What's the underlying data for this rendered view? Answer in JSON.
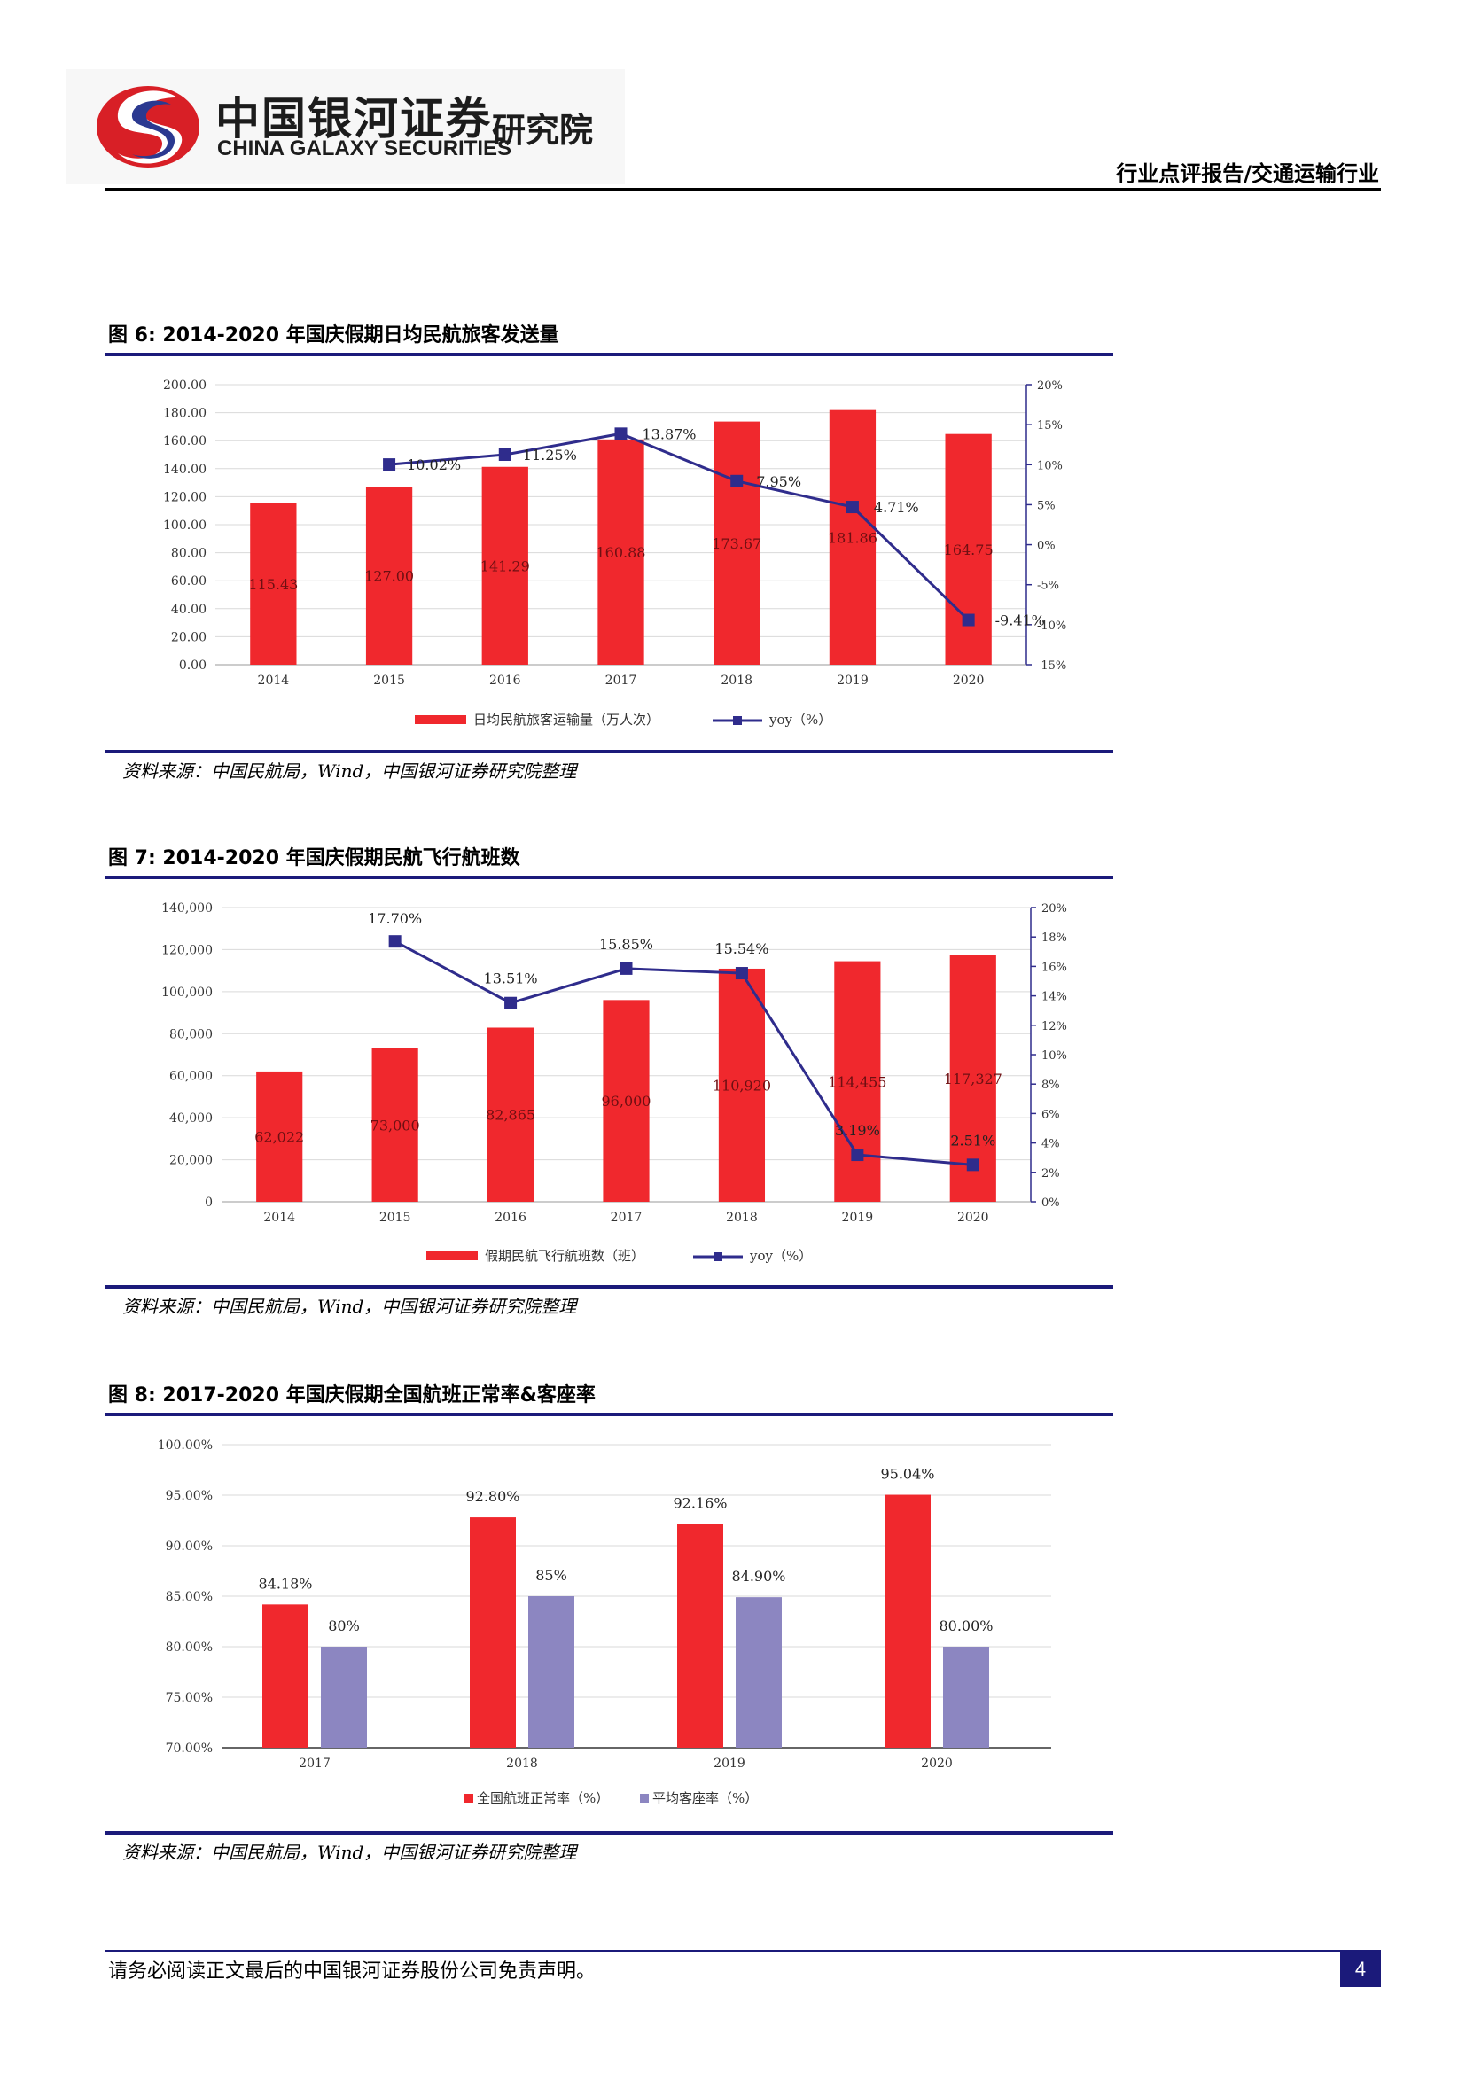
{
  "header": {
    "logo_cn": "中国银河证券",
    "logo_en": "CHINA GALAXY SECURITIES",
    "logo_institute": "研究院",
    "report_type": "行业点评报告/交通运输行业"
  },
  "figures": [
    {
      "title": "图 6: 2014-2020 年国庆假期日均民航旅客发送量",
      "source": "资料来源：中国民航局，Wind，中国银河证券研究院整理"
    },
    {
      "title": "图 7: 2014-2020 年国庆假期民航飞行航班数",
      "source": "资料来源：中国民航局，Wind，中国银河证券研究院整理"
    },
    {
      "title": "图 8: 2017-2020 年国庆假期全国航班正常率&客座率",
      "source": "资料来源：中国民航局，Wind，中国银河证券研究院整理"
    }
  ],
  "chart_data": [
    {
      "type": "bar+line",
      "categories": [
        "2014",
        "2015",
        "2016",
        "2017",
        "2018",
        "2019",
        "2020"
      ],
      "series": [
        {
          "name": "日均民航旅客运输量（万人次）",
          "type": "bar",
          "axis": "left",
          "values": [
            115.43,
            127.0,
            141.29,
            160.88,
            173.67,
            181.86,
            164.75
          ],
          "labels": [
            "115.43",
            "127.00",
            "141.29",
            "160.88",
            "173.67",
            "181.86",
            "164.75"
          ],
          "color": "#f0282d"
        },
        {
          "name": "yoy（%）",
          "type": "line",
          "axis": "right",
          "values": [
            null,
            10.02,
            11.25,
            13.87,
            7.95,
            4.71,
            -9.41
          ],
          "labels": [
            "",
            "10.02%",
            "11.25%",
            "13.87%",
            "7.95%",
            "4.71%",
            "-9.41%"
          ],
          "color": "#2f2c8c"
        }
      ],
      "left_ticks": [
        "0.00",
        "20.00",
        "40.00",
        "60.00",
        "80.00",
        "100.00",
        "120.00",
        "140.00",
        "160.00",
        "180.00",
        "200.00"
      ],
      "right_ticks": [
        "-15%",
        "-10%",
        "-5%",
        "0%",
        "5%",
        "10%",
        "15%",
        "20%"
      ],
      "ylim": [
        0,
        200
      ],
      "y2lim": [
        -15,
        20
      ],
      "legend_position": "bottom"
    },
    {
      "type": "bar+line",
      "categories": [
        "2014",
        "2015",
        "2016",
        "2017",
        "2018",
        "2019",
        "2020"
      ],
      "series": [
        {
          "name": "假期民航飞行航班数（班）",
          "type": "bar",
          "axis": "left",
          "values": [
            62022,
            73000,
            82865,
            96000,
            110920,
            114455,
            117327
          ],
          "labels": [
            "62,022",
            "73,000",
            "82,865",
            "96,000",
            "110,920",
            "114,455",
            "117,327"
          ],
          "color": "#f0282d"
        },
        {
          "name": "yoy（%）",
          "type": "line",
          "axis": "right",
          "values": [
            null,
            17.7,
            13.51,
            15.85,
            15.54,
            3.19,
            2.51
          ],
          "labels": [
            "",
            "17.70%",
            "13.51%",
            "15.85%",
            "15.54%",
            "3.19%",
            "2.51%"
          ],
          "color": "#2f2c8c"
        }
      ],
      "left_ticks": [
        "0",
        "20,000",
        "40,000",
        "60,000",
        "80,000",
        "100,000",
        "120,000",
        "140,000"
      ],
      "right_ticks": [
        "0%",
        "2%",
        "4%",
        "6%",
        "8%",
        "10%",
        "12%",
        "14%",
        "16%",
        "18%",
        "20%"
      ],
      "ylim": [
        0,
        140000
      ],
      "y2lim": [
        0,
        20
      ],
      "legend_position": "bottom"
    },
    {
      "type": "bar",
      "categories": [
        "2017",
        "2018",
        "2019",
        "2020"
      ],
      "series": [
        {
          "name": "全国航班正常率（%）",
          "values": [
            84.18,
            92.8,
            92.16,
            95.04
          ],
          "labels": [
            "84.18%",
            "92.80%",
            "92.16%",
            "95.04%"
          ],
          "color": "#f0282d"
        },
        {
          "name": "平均客座率（%）",
          "values": [
            80,
            85,
            84.9,
            80.0
          ],
          "labels": [
            "80%",
            "85%",
            "84.90%",
            "80.00%"
          ],
          "color": "#8c86c1"
        }
      ],
      "left_ticks": [
        "70.00%",
        "75.00%",
        "80.00%",
        "85.00%",
        "90.00%",
        "95.00%",
        "100.00%"
      ],
      "ylim": [
        70,
        100
      ],
      "legend_position": "bottom"
    }
  ],
  "footer": {
    "disclaimer": "请务必阅读正文最后的中国银河证券股份公司免责声明。",
    "page_number": "4"
  }
}
